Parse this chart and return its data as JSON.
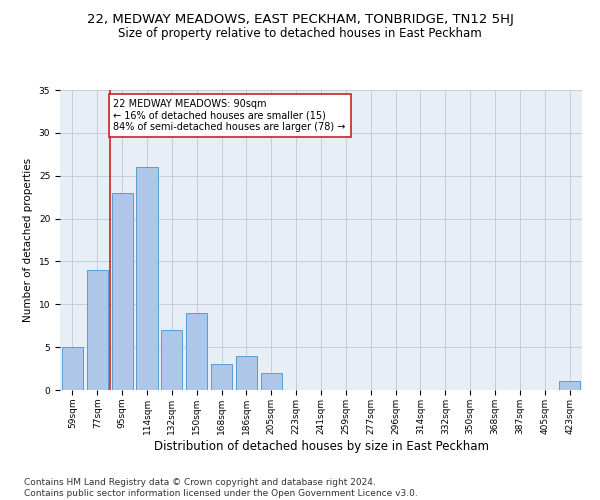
{
  "title": "22, MEDWAY MEADOWS, EAST PECKHAM, TONBRIDGE, TN12 5HJ",
  "subtitle": "Size of property relative to detached houses in East Peckham",
  "xlabel": "Distribution of detached houses by size in East Peckham",
  "ylabel": "Number of detached properties",
  "categories": [
    "59sqm",
    "77sqm",
    "95sqm",
    "114sqm",
    "132sqm",
    "150sqm",
    "168sqm",
    "186sqm",
    "205sqm",
    "223sqm",
    "241sqm",
    "259sqm",
    "277sqm",
    "296sqm",
    "314sqm",
    "332sqm",
    "350sqm",
    "368sqm",
    "387sqm",
    "405sqm",
    "423sqm"
  ],
  "values": [
    5,
    14,
    23,
    26,
    7,
    9,
    3,
    4,
    2,
    0,
    0,
    0,
    0,
    0,
    0,
    0,
    0,
    0,
    0,
    0,
    1
  ],
  "bar_color": "#aec6e8",
  "bar_edge_color": "#5b9bd5",
  "vline_x": 1.5,
  "vline_color": "#cc2222",
  "annotation_text": "22 MEDWAY MEADOWS: 90sqm\n← 16% of detached houses are smaller (15)\n84% of semi-detached houses are larger (78) →",
  "annotation_box_color": "#ffffff",
  "annotation_box_edge": "#cc2222",
  "ylim": [
    0,
    35
  ],
  "yticks": [
    0,
    5,
    10,
    15,
    20,
    25,
    30,
    35
  ],
  "background_color": "#e8eef5",
  "footer": "Contains HM Land Registry data © Crown copyright and database right 2024.\nContains public sector information licensed under the Open Government Licence v3.0.",
  "title_fontsize": 9.5,
  "subtitle_fontsize": 8.5,
  "xlabel_fontsize": 8.5,
  "ylabel_fontsize": 7.5,
  "tick_fontsize": 6.5,
  "annotation_fontsize": 7.0,
  "footer_fontsize": 6.5
}
